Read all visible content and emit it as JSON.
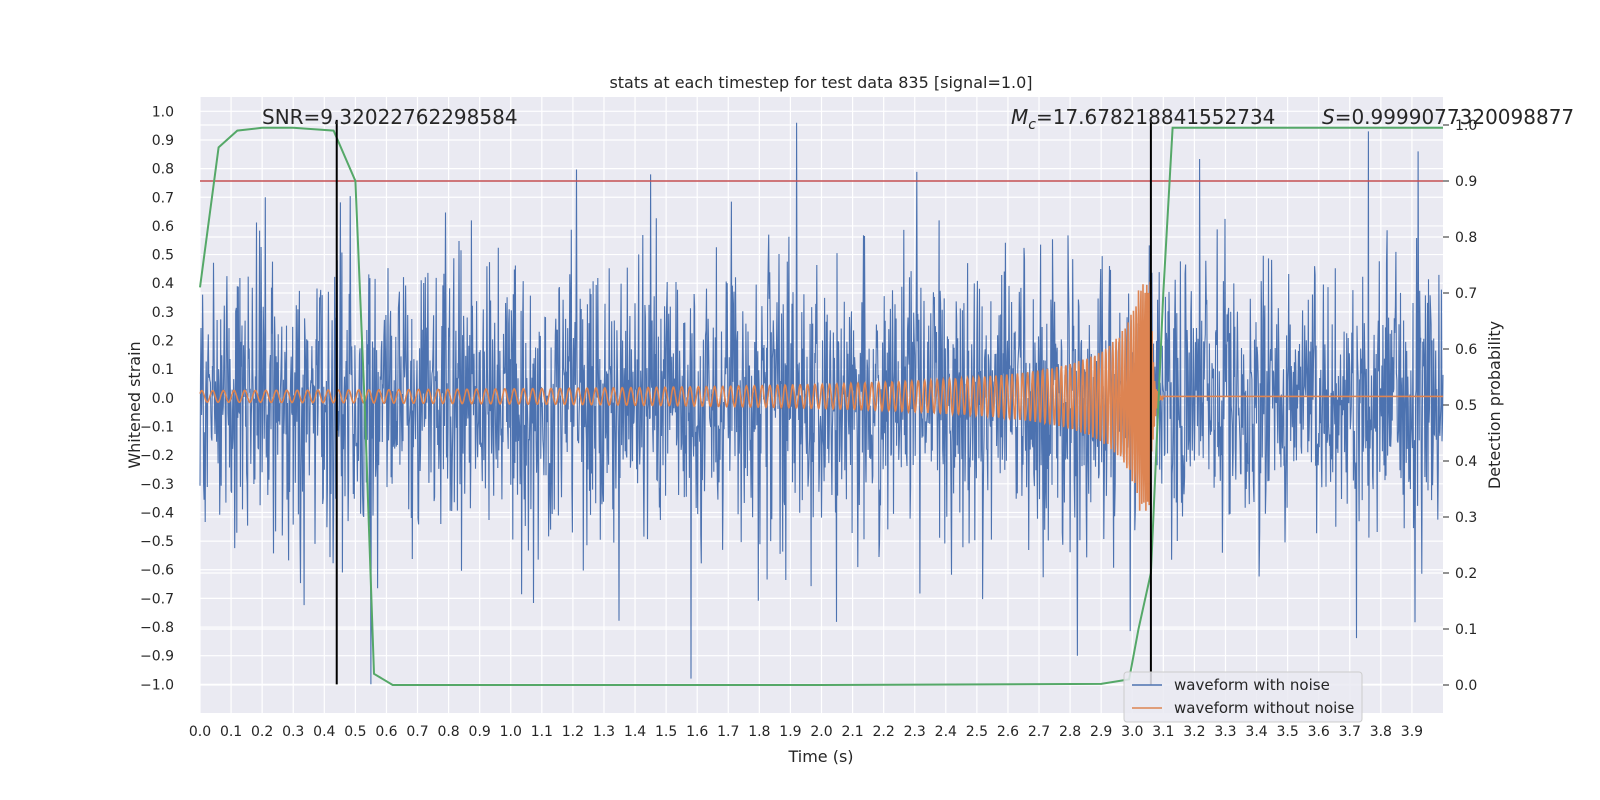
{
  "chart_data": {
    "type": "line",
    "title": "stats at each timestep for test data 835 [signal=1.0]",
    "xlabel": "Time (s)",
    "ylabel": "Whitened strain",
    "ylabel_right": "Detection probability",
    "xlim": [
      0.0,
      4.0
    ],
    "ylim": [
      -1.1,
      1.05
    ],
    "ylim_right": [
      -0.05,
      1.05
    ],
    "x_ticks": [
      0.0,
      0.1,
      0.2,
      0.3,
      0.4,
      0.5,
      0.6,
      0.7,
      0.8,
      0.9,
      1.0,
      1.1,
      1.2,
      1.3,
      1.4,
      1.5,
      1.6,
      1.7,
      1.8,
      1.9,
      2.0,
      2.1,
      2.2,
      2.3,
      2.4,
      2.5,
      2.6,
      2.7,
      2.8,
      2.9,
      3.0,
      3.1,
      3.2,
      3.3,
      3.4,
      3.5,
      3.6,
      3.7,
      3.8,
      3.9
    ],
    "x_tick_labels": [
      "0.0",
      "0.1",
      "0.2",
      "0.3",
      "0.4",
      "0.5",
      "0.6",
      "0.7",
      "0.8",
      "0.9",
      "1.0",
      "1.1",
      "1.2",
      "1.3",
      "1.4",
      "1.5",
      "1.6",
      "1.7",
      "1.8",
      "1.9",
      "2.0",
      "2.1",
      "2.2",
      "2.3",
      "2.4",
      "2.5",
      "2.6",
      "2.7",
      "2.8",
      "2.9",
      "3.0",
      "3.1",
      "3.2",
      "3.3",
      "3.4",
      "3.5",
      "3.6",
      "3.7",
      "3.8",
      "3.9"
    ],
    "y_ticks": [
      1.0,
      0.9,
      0.8,
      0.7,
      0.6,
      0.5,
      0.4,
      0.3,
      0.2,
      0.1,
      0.0,
      -0.1,
      -0.2,
      -0.3,
      -0.4,
      -0.5,
      -0.6,
      -0.7,
      -0.8,
      -0.9,
      -1.0
    ],
    "y_tick_labels": [
      "1.0",
      "0.9",
      "0.8",
      "0.7",
      "0.6",
      "0.5",
      "0.4",
      "0.3",
      "0.2",
      "0.1",
      "0.0",
      "−0.1",
      "−0.2",
      "−0.3",
      "−0.4",
      "−0.5",
      "−0.6",
      "−0.7",
      "−0.8",
      "−0.9",
      "−1.0"
    ],
    "y_right_ticks": [
      1.0,
      0.9,
      0.8,
      0.7,
      0.6,
      0.5,
      0.4,
      0.3,
      0.2,
      0.1,
      0.0
    ],
    "y_right_tick_labels": [
      "1.0",
      "0.9",
      "0.8",
      "0.7",
      "0.6",
      "0.5",
      "0.4",
      "0.3",
      "0.2",
      "0.1",
      "0.0"
    ],
    "grid": true,
    "legend_position": "lower-right",
    "series": [
      {
        "name": "waveform with noise",
        "color": "#4c72b0",
        "axis": "left",
        "note": "dense whitened noise, roughly within -0.7 to 0.7 with spikes up to about 0.95 and down to about -1.0",
        "peaks": [
          [
            0.21,
            0.7
          ],
          [
            1.45,
            0.78
          ],
          [
            1.58,
            -0.98
          ],
          [
            1.92,
            0.96
          ],
          [
            3.76,
            0.93
          ],
          [
            3.92,
            0.86
          ],
          [
            0.55,
            -1.0
          ]
        ]
      },
      {
        "name": "waveform without noise",
        "color": "#dd8452",
        "axis": "left",
        "note": "chirp signal, amplitude about 0.02 growing to about 0.4 at merger",
        "merger_time": 3.06,
        "amplitude_start": 0.02,
        "amplitude_peak": 0.4,
        "post_merger_value": 0.0
      },
      {
        "name": "",
        "color": "#55a868",
        "axis": "right",
        "x": [
          0.0,
          0.06,
          0.12,
          0.2,
          0.3,
          0.43,
          0.5,
          0.53,
          0.56,
          0.62,
          1.0,
          2.0,
          2.9,
          2.99,
          3.02,
          3.06,
          3.1,
          3.13,
          3.3,
          4.0
        ],
        "y": [
          0.71,
          0.96,
          0.99,
          0.995,
          0.995,
          0.99,
          0.9,
          0.5,
          0.02,
          0.0,
          0.0,
          0.0,
          0.002,
          0.01,
          0.1,
          0.2,
          0.7,
          0.995,
          0.995,
          0.995
        ]
      }
    ],
    "threshold_line": {
      "y_right": 0.9,
      "color": "#c44e52"
    },
    "vertical_lines": [
      {
        "x": 0.44,
        "color": "#000000",
        "y_from": -1.0,
        "y_to": 0.97
      },
      {
        "x": 3.06,
        "color": "#000000",
        "y_from": -1.0,
        "y_to": 0.97
      }
    ],
    "annotations": [
      {
        "id": "snr",
        "text": "SNR=9.32022762298584"
      },
      {
        "id": "mc",
        "prefix": "M",
        "subscript": "c",
        "text": "=17.678218841552734"
      },
      {
        "id": "s",
        "prefix": "S",
        "text": "=0.9999077320098877"
      }
    ],
    "legend": [
      {
        "label": "waveform with noise",
        "color": "#4c72b0"
      },
      {
        "label": "waveform without noise",
        "color": "#dd8452"
      }
    ]
  }
}
